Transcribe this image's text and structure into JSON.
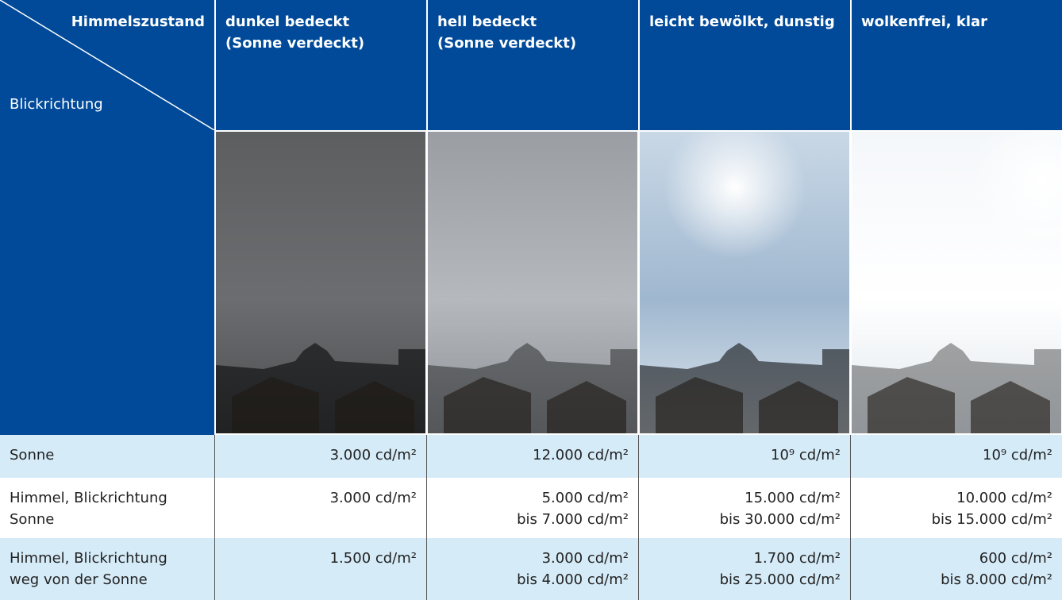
{
  "table": {
    "corner": {
      "top": "Himmelszustand",
      "bottom": "Blickrichtung"
    },
    "columns": [
      [
        "dunkel bedeckt",
        "(Sonne verdeckt)"
      ],
      [
        "hell bedeckt",
        "(Sonne verdeckt)"
      ],
      [
        "leicht bewölkt, dunstig"
      ],
      [
        "wolkenfrei, klar"
      ]
    ],
    "rows": [
      {
        "label": [
          "Sonne"
        ],
        "cells": [
          [
            "3.000 cd/m²"
          ],
          [
            "12.000 cd/m²"
          ],
          [
            "10⁹ cd/m²"
          ],
          [
            "10⁹ cd/m²"
          ]
        ]
      },
      {
        "label": [
          "Himmel, Blickrichtung",
          "Sonne"
        ],
        "cells": [
          [
            "3.000 cd/m²"
          ],
          [
            "5.000 cd/m²",
            "bis 7.000 cd/m²"
          ],
          [
            "15.000 cd/m²",
            "bis 30.000 cd/m²"
          ],
          [
            "10.000 cd/m²",
            "bis 15.000 cd/m²"
          ]
        ]
      },
      {
        "label": [
          "Himmel, Blickrichtung",
          "weg von der Sonne"
        ],
        "cells": [
          [
            "1.500 cd/m²"
          ],
          [
            "3.000 cd/m²",
            "bis 4.000 cd/m²"
          ],
          [
            "1.700 cd/m²",
            "bis 25.000 cd/m²"
          ],
          [
            "600 cd/m²",
            "bis 8.000 cd/m²"
          ]
        ]
      }
    ]
  }
}
